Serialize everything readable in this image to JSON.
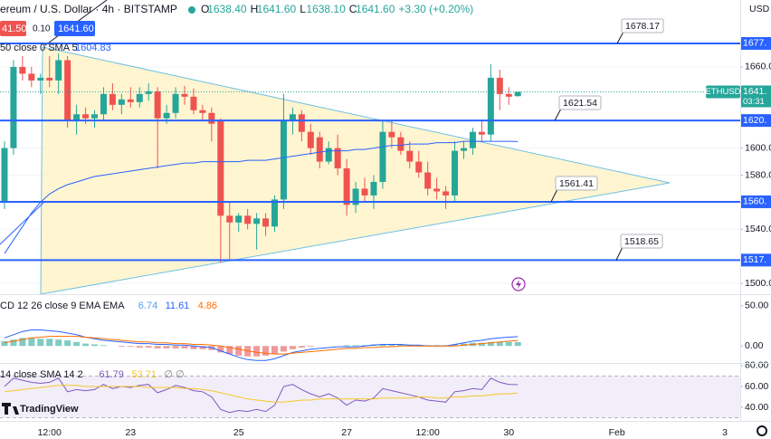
{
  "header": {
    "title": "ereum / U.S. Dollar · 4h · BITSTAMP",
    "ohlc": [
      {
        "label": "O",
        "value": "1638.40"
      },
      {
        "label": "H",
        "value": "1641.60"
      },
      {
        "label": "L",
        "value": "1638.10"
      },
      {
        "label": "C",
        "value": "1641.60"
      }
    ],
    "change": "+3.30 (+0.20%)",
    "currency": "USD",
    "sell": "41.50",
    "spread": "0.10",
    "buy": "1641.60"
  },
  "logo": "TradingView",
  "x_axis": {
    "xlim": [
      -0.5,
      81.7
    ],
    "xticks": [
      {
        "value": 5,
        "label": "12:00"
      },
      {
        "value": 14,
        "label": "23"
      },
      {
        "value": 26,
        "label": "25"
      },
      {
        "value": 38,
        "label": "27"
      },
      {
        "value": 47,
        "label": "12:00"
      },
      {
        "value": 56,
        "label": "30"
      },
      {
        "value": 68,
        "label": "Feb"
      },
      {
        "value": 80,
        "label": "3"
      }
    ]
  },
  "chart_data": [
    {
      "type": "candlestick",
      "up_color": "#26a69a",
      "down_color": "#ef5350",
      "ylim": [
        1492,
        1709.5
      ],
      "yticks": [
        {
          "value": 1660,
          "label": "1660.00"
        },
        {
          "value": 1600,
          "label": "1600.00"
        },
        {
          "value": 1580,
          "label": "1580.00"
        },
        {
          "value": 1540,
          "label": "1540.00"
        },
        {
          "value": 1500,
          "label": "1500.00"
        }
      ],
      "grid": true,
      "ohlc": [
        [
          1560,
          1605,
          1555,
          1600
        ],
        [
          1600,
          1665,
          1595,
          1660
        ],
        [
          1660,
          1668,
          1650,
          1655
        ],
        [
          1655,
          1660,
          1645,
          1650
        ],
        [
          1650,
          1655,
          1640,
          1652
        ],
        [
          1652,
          1668,
          1645,
          1650
        ],
        [
          1650,
          1670,
          1640,
          1665
        ],
        [
          1665,
          1668,
          1615,
          1620
        ],
        [
          1620,
          1632,
          1610,
          1625
        ],
        [
          1625,
          1630,
          1618,
          1622
        ],
        [
          1622,
          1628,
          1615,
          1625
        ],
        [
          1625,
          1645,
          1620,
          1640
        ],
        [
          1640,
          1648,
          1628,
          1632
        ],
        [
          1632,
          1640,
          1625,
          1636
        ],
        [
          1636,
          1645,
          1630,
          1634
        ],
        [
          1634,
          1645,
          1630,
          1640
        ],
        [
          1640,
          1648,
          1635,
          1642
        ],
        [
          1642,
          1645,
          1585,
          1622
        ],
        [
          1622,
          1632,
          1618,
          1626
        ],
        [
          1626,
          1645,
          1622,
          1640
        ],
        [
          1640,
          1646,
          1632,
          1638
        ],
        [
          1638,
          1644,
          1625,
          1628
        ],
        [
          1628,
          1632,
          1620,
          1626
        ],
        [
          1626,
          1630,
          1605,
          1618
        ],
        [
          1620,
          1622,
          1515,
          1550
        ],
        [
          1550,
          1560,
          1518,
          1545
        ],
        [
          1545,
          1552,
          1538,
          1550
        ],
        [
          1550,
          1555,
          1540,
          1544
        ],
        [
          1544,
          1552,
          1525,
          1548
        ],
        [
          1548,
          1552,
          1535,
          1542
        ],
        [
          1542,
          1565,
          1538,
          1562
        ],
        [
          1562,
          1640,
          1555,
          1620
        ],
        [
          1620,
          1630,
          1610,
          1625
        ],
        [
          1625,
          1628,
          1605,
          1612
        ],
        [
          1612,
          1618,
          1595,
          1600
        ],
        [
          1608,
          1612,
          1585,
          1590
        ],
        [
          1590,
          1605,
          1588,
          1600
        ],
        [
          1600,
          1610,
          1580,
          1585
        ],
        [
          1585,
          1592,
          1550,
          1558
        ],
        [
          1558,
          1575,
          1552,
          1570
        ],
        [
          1570,
          1578,
          1560,
          1565
        ],
        [
          1565,
          1580,
          1555,
          1575
        ],
        [
          1575,
          1620,
          1570,
          1612
        ],
        [
          1612,
          1620,
          1600,
          1608
        ],
        [
          1608,
          1612,
          1595,
          1598
        ],
        [
          1598,
          1605,
          1585,
          1590
        ],
        [
          1590,
          1598,
          1578,
          1582
        ],
        [
          1582,
          1590,
          1565,
          1570
        ],
        [
          1570,
          1578,
          1562,
          1568
        ],
        [
          1568,
          1572,
          1555,
          1565
        ],
        [
          1565,
          1605,
          1560,
          1598
        ],
        [
          1598,
          1605,
          1592,
          1600
        ],
        [
          1600,
          1615,
          1595,
          1612
        ],
        [
          1612,
          1620,
          1605,
          1610
        ],
        [
          1610,
          1662,
          1605,
          1652
        ],
        [
          1652,
          1658,
          1628,
          1640
        ],
        [
          1640,
          1645,
          1632,
          1638
        ],
        [
          1638.4,
          1641.6,
          1638.1,
          1641.6
        ]
      ],
      "sma": {
        "color": "#2962ff",
        "values": [
          1522,
          1532,
          1542,
          1552,
          1560,
          1566,
          1570,
          1573,
          1575,
          1577,
          1579,
          1580,
          1581,
          1582,
          1583,
          1584,
          1585,
          1586,
          1587,
          1588,
          1589,
          1589,
          1590,
          1590,
          1590,
          1590,
          1590,
          1591,
          1591,
          1591,
          1592,
          1593,
          1594,
          1595,
          1596,
          1597,
          1598,
          1598,
          1598,
          1599,
          1599,
          1600,
          1601,
          1602,
          1602,
          1603,
          1603,
          1603,
          1604,
          1604,
          1604,
          1605,
          1605,
          1605,
          1605,
          1605,
          1605,
          1604.83
        ]
      },
      "legend": {
        "title": "50 close 0 SMA 5",
        "value": "1604.83"
      },
      "levels": [
        {
          "value": 1677.4,
          "label": "1677."
        },
        {
          "value": 1620.4,
          "label": "1620."
        },
        {
          "value": 1560.3,
          "label": "1560."
        },
        {
          "value": 1517.2,
          "label": "1517."
        }
      ],
      "level_color": "#2962ff",
      "callouts": [
        "1678.17",
        "1621.54",
        "1561.41",
        "1518.65"
      ],
      "price_label": {
        "symbol": "ETHUSD",
        "price": "1641.",
        "countdown": "03:31"
      }
    },
    {
      "type": "macd",
      "ylim": [
        -20,
        63.3
      ],
      "yticks": [
        {
          "value": 50,
          "label": "50.00"
        },
        {
          "value": 0,
          "label": "0.00"
        }
      ],
      "histogram": {
        "up_color": "#80cbc4",
        "down_color": "#ef9a9a",
        "values": [
          6,
          8,
          10,
          10,
          9,
          9,
          8,
          7,
          5,
          3,
          2,
          1,
          0,
          -1,
          -1,
          -2,
          -2,
          -3,
          -3,
          -3,
          -3,
          -4,
          -4,
          -5,
          -8,
          -10,
          -12,
          -13,
          -13,
          -12,
          -10,
          -7,
          -4,
          -2,
          -1,
          0,
          0,
          0,
          1,
          1,
          1,
          2,
          2,
          2,
          2,
          1,
          1,
          1,
          1,
          1,
          2,
          3,
          4,
          4,
          5,
          5,
          5,
          4.86
        ]
      },
      "series": [
        {
          "color": "#2962ff",
          "values": [
            10,
            14,
            18,
            20,
            20,
            19,
            18,
            16,
            14,
            11,
            9,
            7,
            6,
            5,
            4,
            3,
            3,
            2,
            2,
            1,
            1,
            0,
            -1,
            -2,
            -6,
            -10,
            -14,
            -17,
            -18,
            -18,
            -16,
            -12,
            -8,
            -6,
            -4,
            -3,
            -2,
            -1,
            -1,
            -1,
            0,
            1,
            2,
            2,
            2,
            1,
            1,
            0,
            0,
            0,
            2,
            4,
            6,
            7,
            9,
            10,
            11,
            11.61
          ]
        },
        {
          "color": "#ff6d00",
          "values": [
            4,
            6,
            8,
            10,
            11,
            12,
            12,
            12,
            12,
            11,
            10,
            9,
            8,
            7,
            6,
            5,
            5,
            4,
            4,
            3,
            3,
            2,
            2,
            1,
            0,
            -2,
            -4,
            -6,
            -8,
            -9,
            -10,
            -10,
            -9,
            -8,
            -7,
            -6,
            -5,
            -4,
            -3,
            -3,
            -2,
            -2,
            -1,
            -1,
            0,
            0,
            0,
            0,
            0,
            0,
            0,
            1,
            2,
            3,
            4,
            5,
            6,
            6.74
          ]
        }
      ],
      "legend": {
        "title": "CD 12 26 close 9 EMA EMA",
        "values": [
          {
            "text": "6.74",
            "color": "#5d9cec"
          },
          {
            "text": "11.61",
            "color": "#2962ff"
          },
          {
            "text": "4.86",
            "color": "#ff6d00"
          }
        ]
      }
    },
    {
      "type": "line",
      "ylim": [
        27,
        81.7
      ],
      "yticks": [
        {
          "value": 80,
          "label": "80.00"
        },
        {
          "value": 60,
          "label": "60.00"
        },
        {
          "value": 40,
          "label": "40.00"
        }
      ],
      "band": [
        30,
        70
      ],
      "series": [
        {
          "color": "#7e57c2",
          "values": [
            60,
            68,
            66,
            64,
            63,
            64,
            68,
            55,
            57,
            56,
            57,
            62,
            58,
            60,
            59,
            61,
            62,
            54,
            57,
            61,
            59,
            56,
            55,
            50,
            38,
            35,
            37,
            36,
            38,
            36,
            42,
            60,
            62,
            57,
            53,
            50,
            53,
            49,
            42,
            47,
            46,
            49,
            58,
            56,
            54,
            52,
            50,
            47,
            46,
            45,
            55,
            56,
            58,
            57,
            68,
            64,
            62,
            61.79
          ]
        },
        {
          "color": "#f7c52b",
          "values": [
            55,
            56,
            57,
            58,
            59,
            60,
            61,
            61,
            61,
            60,
            60,
            60,
            60,
            60,
            60,
            60,
            59,
            59,
            59,
            59,
            58,
            58,
            57,
            56,
            54,
            52,
            50,
            48,
            47,
            46,
            45,
            45,
            46,
            47,
            47,
            48,
            48,
            48,
            48,
            48,
            48,
            48,
            49,
            49,
            49,
            49,
            50,
            50,
            49,
            49,
            50,
            50,
            51,
            51,
            52,
            53,
            53,
            53.71
          ]
        }
      ],
      "legend": {
        "title": "14 close SMA 14 2",
        "values": [
          {
            "text": "61.79",
            "color": "#7e57c2"
          },
          {
            "text": "53.71",
            "color": "#f7c52b"
          },
          {
            "text": "∅ ∅",
            "color": "#787b86"
          }
        ]
      }
    }
  ]
}
